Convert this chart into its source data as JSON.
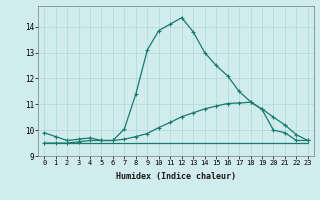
{
  "xlabel": "Humidex (Indice chaleur)",
  "bg_color": "#d0ecec",
  "line_color": "#1a7a6e",
  "grid_color": "#b0d8d8",
  "ylim": [
    9.0,
    14.8
  ],
  "xlim": [
    -0.5,
    23.5
  ],
  "yticks": [
    9,
    10,
    11,
    12,
    13,
    14
  ],
  "xticks": [
    0,
    1,
    2,
    3,
    4,
    5,
    6,
    7,
    8,
    9,
    10,
    11,
    12,
    13,
    14,
    15,
    16,
    17,
    18,
    19,
    20,
    21,
    22,
    23
  ],
  "xtick_labels": [
    "0",
    "1",
    "2",
    "3",
    "4",
    "5",
    "6",
    "7",
    "8",
    "9",
    "10",
    "11",
    "12",
    "13",
    "14",
    "15",
    "16",
    "17",
    "18",
    "19",
    "20",
    "21",
    "22",
    "23"
  ],
  "curve1_x": [
    0,
    1,
    2,
    3,
    4,
    5,
    6,
    7,
    8,
    9,
    10,
    11,
    12,
    13,
    14,
    15,
    16,
    17,
    18,
    19,
    20,
    21,
    22,
    23
  ],
  "curve1_y": [
    9.9,
    9.75,
    9.6,
    9.65,
    9.7,
    9.6,
    9.6,
    10.05,
    11.4,
    13.1,
    13.85,
    14.1,
    14.35,
    13.8,
    13.0,
    12.5,
    12.1,
    11.5,
    11.1,
    10.8,
    10.0,
    9.9,
    9.6,
    9.6
  ],
  "curve2_x": [
    0,
    1,
    2,
    3,
    4,
    5,
    6,
    7,
    8,
    9,
    10,
    11,
    12,
    13,
    14,
    15,
    16,
    17,
    18,
    19,
    20,
    21,
    22,
    23
  ],
  "curve2_y": [
    9.5,
    9.5,
    9.5,
    9.5,
    9.5,
    9.5,
    9.5,
    9.5,
    9.5,
    9.5,
    9.5,
    9.5,
    9.5,
    9.5,
    9.5,
    9.5,
    9.5,
    9.5,
    9.5,
    9.5,
    9.5,
    9.5,
    9.5,
    9.5
  ],
  "curve3_x": [
    0,
    1,
    2,
    3,
    4,
    5,
    6,
    7,
    8,
    9,
    10,
    11,
    12,
    13,
    14,
    15,
    16,
    17,
    18,
    19,
    20,
    21,
    22,
    23
  ],
  "curve3_y": [
    9.5,
    9.5,
    9.5,
    9.55,
    9.6,
    9.6,
    9.6,
    9.65,
    9.75,
    9.87,
    10.1,
    10.3,
    10.52,
    10.67,
    10.82,
    10.93,
    11.03,
    11.05,
    11.08,
    10.82,
    10.5,
    10.2,
    9.82,
    9.6
  ],
  "marker": "+",
  "markersize": 3.5,
  "linewidth": 0.9
}
